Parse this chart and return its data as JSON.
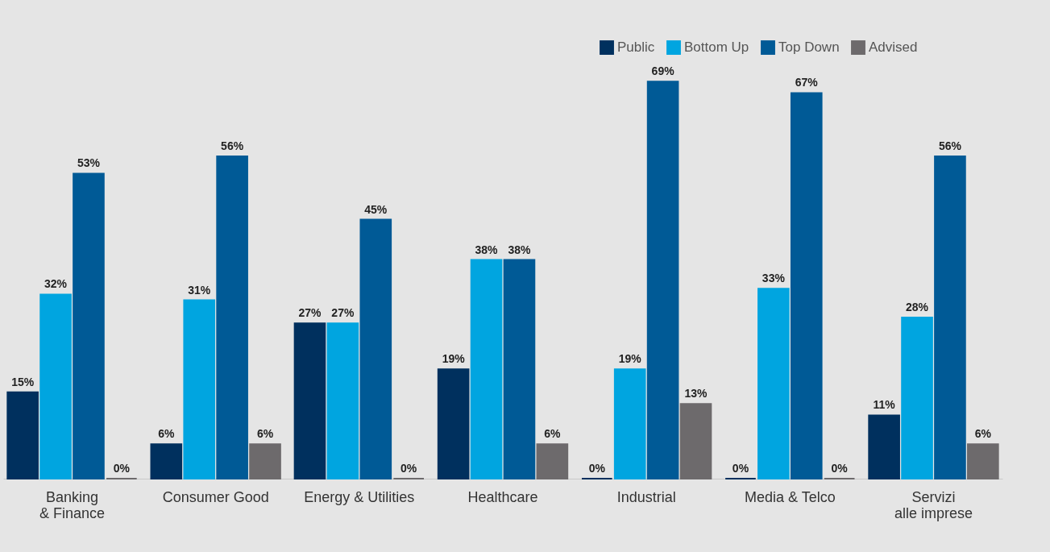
{
  "chart_data": {
    "type": "bar",
    "categories": [
      "Banking\n& Finance",
      "Consumer Good",
      "Energy & Utilities",
      "Healthcare",
      "Industrial",
      "Media & Telco",
      "Servizi\nalle imprese"
    ],
    "series": [
      {
        "name": "Public",
        "color": "#00305e",
        "values": [
          15,
          6,
          27,
          19,
          0,
          0,
          11
        ],
        "value_labels": [
          "15%",
          "6%",
          "27%",
          "19%",
          "0%",
          "0%",
          "11%"
        ]
      },
      {
        "name": "Bottom Up",
        "color": "#00a5e0",
        "values": [
          32,
          31,
          27,
          38,
          19,
          33,
          28
        ],
        "value_labels": [
          "32%",
          "31%",
          "27%",
          "38%",
          "19%",
          "33%",
          "28%"
        ]
      },
      {
        "name": "Top Down",
        "color": "#005a96",
        "values": [
          53,
          56,
          45,
          38,
          69,
          67,
          56
        ],
        "value_labels": [
          "53%",
          "56%",
          "45%",
          "38%",
          "69%",
          "67%",
          "56%"
        ]
      },
      {
        "name": "Advised",
        "color": "#6d6a6c",
        "values": [
          0,
          6,
          0,
          6,
          13,
          0,
          6
        ],
        "value_labels": [
          "0%",
          "6%",
          "0%",
          "6%",
          "13%",
          "0%",
          "6%"
        ]
      }
    ],
    "legend": "top right",
    "grid": false
  }
}
